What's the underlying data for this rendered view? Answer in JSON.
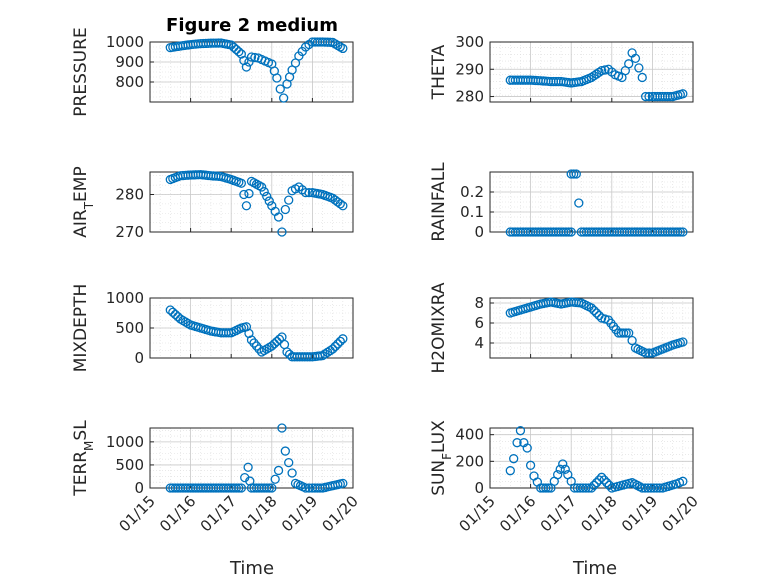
{
  "figure": {
    "title": "Figure 2 medium",
    "xlabel": "Time",
    "xticks": [
      "01/15",
      "01/16",
      "01/17",
      "01/18",
      "01/19",
      "01/20"
    ],
    "marker_color": "#0072BD"
  },
  "chart_data": [
    {
      "type": "scatter",
      "panel": "top-left",
      "ylabel_text": "PRESSURE",
      "ylabel_sub": "",
      "xlim": [
        "01/15",
        "01/20"
      ],
      "ylim": [
        700,
        1000
      ],
      "yticks": [
        800,
        900,
        1000
      ],
      "ytick_labels": [
        "800",
        "900",
        "1000"
      ],
      "points": [
        [
          "01/15 12:00",
          972
        ],
        [
          "01/15 18:00",
          980
        ],
        [
          "01/16 00:00",
          987
        ],
        [
          "01/16 06:00",
          992
        ],
        [
          "01/16 12:00",
          994
        ],
        [
          "01/16 18:00",
          995
        ],
        [
          "01/17 00:00",
          985
        ],
        [
          "01/17 06:00",
          940
        ],
        [
          "01/17 09:00",
          875
        ],
        [
          "01/17 12:00",
          925
        ],
        [
          "01/17 16:00",
          920
        ],
        [
          "01/17 20:00",
          905
        ],
        [
          "01/18 00:00",
          890
        ],
        [
          "01/18 03:00",
          820
        ],
        [
          "01/18 05:00",
          765
        ],
        [
          "01/18 07:00",
          720
        ],
        [
          "01/18 09:00",
          790
        ],
        [
          "01/18 12:00",
          860
        ],
        [
          "01/18 16:00",
          930
        ],
        [
          "01/18 20:00",
          975
        ],
        [
          "01/19 00:00",
          1000
        ],
        [
          "01/19 06:00",
          1000
        ],
        [
          "01/19 12:00",
          998
        ],
        [
          "01/19 18:00",
          968
        ]
      ]
    },
    {
      "type": "scatter",
      "panel": "top-right",
      "ylabel_text": "THETA",
      "ylabel_sub": "",
      "xlim": [
        "01/15",
        "01/20"
      ],
      "ylim": [
        278,
        300
      ],
      "yticks": [
        280,
        290,
        300
      ],
      "ytick_labels": [
        "280",
        "290",
        "300"
      ],
      "points": [
        [
          "01/15 12:00",
          286
        ],
        [
          "01/15 18:00",
          286
        ],
        [
          "01/16 00:00",
          286
        ],
        [
          "01/16 06:00",
          285.8
        ],
        [
          "01/16 12:00",
          285.5
        ],
        [
          "01/16 18:00",
          285.5
        ],
        [
          "01/17 00:00",
          285
        ],
        [
          "01/17 06:00",
          285.5
        ],
        [
          "01/17 12:00",
          287
        ],
        [
          "01/17 18:00",
          289.5
        ],
        [
          "01/17 22:00",
          290
        ],
        [
          "01/18 02:00",
          288
        ],
        [
          "01/18 06:00",
          287
        ],
        [
          "01/18 10:00",
          292
        ],
        [
          "01/18 12:00",
          296
        ],
        [
          "01/18 14:00",
          294
        ],
        [
          "01/18 18:00",
          287
        ],
        [
          "01/18 20:00",
          280
        ],
        [
          "01/19 00:00",
          280
        ],
        [
          "01/19 06:00",
          280
        ],
        [
          "01/19 12:00",
          280
        ],
        [
          "01/19 18:00",
          281
        ]
      ]
    },
    {
      "type": "scatter",
      "panel": "mid1-left",
      "ylabel_text": "AIR",
      "ylabel_sub": "T",
      "ylabel_after": "EMP",
      "xlim": [
        "01/15",
        "01/20"
      ],
      "ylim": [
        270,
        286
      ],
      "yticks": [
        270,
        280
      ],
      "ytick_labels": [
        "270",
        "280"
      ],
      "points": [
        [
          "01/15 12:00",
          284
        ],
        [
          "01/15 18:00",
          285
        ],
        [
          "01/16 00:00",
          285.2
        ],
        [
          "01/16 06:00",
          285.3
        ],
        [
          "01/16 12:00",
          285
        ],
        [
          "01/16 18:00",
          284.8
        ],
        [
          "01/17 00:00",
          284
        ],
        [
          "01/17 06:00",
          283
        ],
        [
          "01/17 09:00",
          277
        ],
        [
          "01/17 12:00",
          283.5
        ],
        [
          "01/17 18:00",
          282
        ],
        [
          "01/18 00:00",
          277
        ],
        [
          "01/18 04:00",
          274
        ],
        [
          "01/18 06:00",
          270
        ],
        [
          "01/18 08:00",
          276
        ],
        [
          "01/18 12:00",
          281
        ],
        [
          "01/18 16:00",
          282
        ],
        [
          "01/18 20:00",
          280.5
        ],
        [
          "01/19 00:00",
          280.5
        ],
        [
          "01/19 06:00",
          280
        ],
        [
          "01/19 12:00",
          279
        ],
        [
          "01/19 18:00",
          277
        ]
      ]
    },
    {
      "type": "scatter",
      "panel": "mid1-right",
      "ylabel_text": "RAINFALL",
      "ylabel_sub": "",
      "xlim": [
        "01/15",
        "01/20"
      ],
      "ylim": [
        0,
        0.3
      ],
      "yticks": [
        0,
        0.1,
        0.2
      ],
      "ytick_labels": [
        "0",
        "0.1",
        "0.2"
      ],
      "points": [
        [
          "01/15 12:00",
          0
        ],
        [
          "01/15 18:00",
          0
        ],
        [
          "01/16 00:00",
          0
        ],
        [
          "01/16 06:00",
          0
        ],
        [
          "01/16 12:00",
          0
        ],
        [
          "01/16 18:00",
          0
        ],
        [
          "01/17 00:00",
          0
        ],
        [
          "01/17 00:00",
          0.29
        ],
        [
          "01/17 03:00",
          0.29
        ],
        [
          "01/17 06:00",
          0
        ],
        [
          "01/17 12:00",
          0
        ],
        [
          "01/17 18:00",
          0
        ],
        [
          "01/18 00:00",
          0
        ],
        [
          "01/18 06:00",
          0
        ],
        [
          "01/18 12:00",
          0
        ],
        [
          "01/18 18:00",
          0
        ],
        [
          "01/19 00:00",
          0
        ],
        [
          "01/19 06:00",
          0
        ],
        [
          "01/19 12:00",
          0
        ],
        [
          "01/19 18:00",
          0
        ]
      ]
    },
    {
      "type": "scatter",
      "panel": "mid2-left",
      "ylabel_text": "MIXDEPTH",
      "ylabel_sub": "",
      "xlim": [
        "01/15",
        "01/20"
      ],
      "ylim": [
        0,
        1000
      ],
      "yticks": [
        0,
        500,
        1000
      ],
      "ytick_labels": [
        "0",
        "500",
        "1000"
      ],
      "points": [
        [
          "01/15 12:00",
          800
        ],
        [
          "01/15 18:00",
          650
        ],
        [
          "01/16 00:00",
          550
        ],
        [
          "01/16 06:00",
          500
        ],
        [
          "01/16 12:00",
          450
        ],
        [
          "01/16 18:00",
          420
        ],
        [
          "01/17 00:00",
          420
        ],
        [
          "01/17 06:00",
          500
        ],
        [
          "01/17 09:00",
          520
        ],
        [
          "01/17 12:00",
          300
        ],
        [
          "01/17 18:00",
          100
        ],
        [
          "01/18 00:00",
          200
        ],
        [
          "01/18 06:00",
          350
        ],
        [
          "01/18 09:00",
          100
        ],
        [
          "01/18 12:00",
          20
        ],
        [
          "01/18 18:00",
          20
        ],
        [
          "01/19 00:00",
          20
        ],
        [
          "01/19 06:00",
          40
        ],
        [
          "01/19 12:00",
          150
        ],
        [
          "01/19 18:00",
          320
        ]
      ]
    },
    {
      "type": "scatter",
      "panel": "mid2-right",
      "ylabel_text": "H2OMIXRA",
      "ylabel_sub": "",
      "xlim": [
        "01/15",
        "01/20"
      ],
      "ylim": [
        2.5,
        8.5
      ],
      "yticks": [
        4,
        6,
        8
      ],
      "ytick_labels": [
        "4",
        "6",
        "8"
      ],
      "points": [
        [
          "01/15 12:00",
          7
        ],
        [
          "01/15 18:00",
          7.3
        ],
        [
          "01/16 00:00",
          7.6
        ],
        [
          "01/16 06:00",
          7.9
        ],
        [
          "01/16 12:00",
          8.1
        ],
        [
          "01/16 18:00",
          7.9
        ],
        [
          "01/17 00:00",
          8.1
        ],
        [
          "01/17 06:00",
          8.0
        ],
        [
          "01/17 12:00",
          7.5
        ],
        [
          "01/17 18:00",
          6.5
        ],
        [
          "01/17 22:00",
          6.3
        ],
        [
          "01/18 04:00",
          5
        ],
        [
          "01/18 10:00",
          5
        ],
        [
          "01/18 14:00",
          3.5
        ],
        [
          "01/18 20:00",
          3
        ],
        [
          "01/19 00:00",
          3
        ],
        [
          "01/19 06:00",
          3.4
        ],
        [
          "01/19 12:00",
          3.8
        ],
        [
          "01/19 18:00",
          4.1
        ]
      ]
    },
    {
      "type": "scatter",
      "panel": "bottom-left",
      "ylabel_text": "TERR",
      "ylabel_sub": "M",
      "ylabel_after": "SL",
      "xlim": [
        "01/15",
        "01/20"
      ],
      "ylim": [
        0,
        1300
      ],
      "yticks": [
        0,
        500,
        1000
      ],
      "ytick_labels": [
        "0",
        "500",
        "1000"
      ],
      "points": [
        [
          "01/15 12:00",
          0
        ],
        [
          "01/15 18:00",
          0
        ],
        [
          "01/16 00:00",
          0
        ],
        [
          "01/16 06:00",
          0
        ],
        [
          "01/16 12:00",
          0
        ],
        [
          "01/16 18:00",
          0
        ],
        [
          "01/17 00:00",
          0
        ],
        [
          "01/17 06:00",
          0
        ],
        [
          "01/17 10:00",
          450
        ],
        [
          "01/17 11:00",
          150
        ],
        [
          "01/17 12:00",
          0
        ],
        [
          "01/17 18:00",
          0
        ],
        [
          "01/18 00:00",
          0
        ],
        [
          "01/18 04:00",
          380
        ],
        [
          "01/18 06:00",
          1300
        ],
        [
          "01/18 08:00",
          800
        ],
        [
          "01/18 10:00",
          550
        ],
        [
          "01/18 14:00",
          100
        ],
        [
          "01/18 20:00",
          0
        ],
        [
          "01/19 00:00",
          0
        ],
        [
          "01/19 06:00",
          0
        ],
        [
          "01/19 12:00",
          50
        ],
        [
          "01/19 18:00",
          100
        ]
      ]
    },
    {
      "type": "scatter",
      "panel": "bottom-right",
      "ylabel_text": "SUN",
      "ylabel_sub": "F",
      "ylabel_after": "LUX",
      "xlim": [
        "01/15",
        "01/20"
      ],
      "ylim": [
        0,
        450
      ],
      "yticks": [
        0,
        200,
        400
      ],
      "ytick_labels": [
        "0",
        "200",
        "400"
      ],
      "points": [
        [
          "01/15 12:00",
          130
        ],
        [
          "01/15 14:00",
          220
        ],
        [
          "01/15 16:00",
          340
        ],
        [
          "01/15 18:00",
          430
        ],
        [
          "01/15 20:00",
          340
        ],
        [
          "01/15 22:00",
          300
        ],
        [
          "01/16 00:00",
          170
        ],
        [
          "01/16 02:00",
          90
        ],
        [
          "01/16 06:00",
          0
        ],
        [
          "01/16 12:00",
          0
        ],
        [
          "01/16 16:00",
          100
        ],
        [
          "01/16 19:00",
          180
        ],
        [
          "01/16 22:00",
          100
        ],
        [
          "01/17 02:00",
          0
        ],
        [
          "01/17 12:00",
          0
        ],
        [
          "01/17 18:00",
          80
        ],
        [
          "01/18 00:00",
          0
        ],
        [
          "01/18 12:00",
          40
        ],
        [
          "01/18 18:00",
          0
        ],
        [
          "01/19 06:00",
          0
        ],
        [
          "01/19 14:00",
          30
        ],
        [
          "01/19 18:00",
          50
        ]
      ]
    }
  ]
}
